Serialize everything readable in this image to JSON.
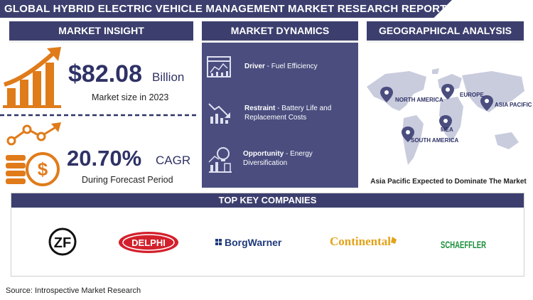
{
  "title": "GLOBAL HYBRID ELECTRIC VEHICLE MANAGEMENT MARKET RESEARCH REPORT",
  "sections": {
    "insight": "MARKET INSIGHT",
    "dynamics": "MARKET DYNAMICS",
    "geo": "GEOGRAPHICAL ANALYSIS",
    "companies": "TOP KEY COMPANIES"
  },
  "insight": {
    "market_value": "$82.08",
    "market_unit": "Billion",
    "market_caption": "Market size in 2023",
    "cagr_value": "20.70%",
    "cagr_unit": "CAGR",
    "cagr_caption": "During Forecast Period"
  },
  "dynamics": [
    {
      "label": "Driver",
      "sep": " - ",
      "text": "Fuel Efficiency",
      "icon": "dashboard-chart-icon"
    },
    {
      "label": "Restraint",
      "sep": " - ",
      "text": "Battery Life and Replacement Costs",
      "icon": "declining-chart-icon"
    },
    {
      "label": "Opportunity",
      "sep": " - ",
      "text": "Energy Diversification",
      "icon": "growth-bulb-icon"
    }
  ],
  "geo": {
    "regions": [
      "NORTH AMERICA",
      "EUROPE",
      "ASIA PACIFIC",
      "SOUTH AMERICA",
      "MEA"
    ],
    "caption": "Asia Pacific Expected to Dominate The Market"
  },
  "companies": [
    "ZF",
    "DELPHI",
    "BorgWarner",
    "Continental",
    "SCHAEFFLER"
  ],
  "source": "Source: Introspective Market Research",
  "colors": {
    "navy": "#3c3f6e",
    "panel": "#4a4d7e",
    "accent": "#e07b1a",
    "text_dark": "#2f3266"
  }
}
